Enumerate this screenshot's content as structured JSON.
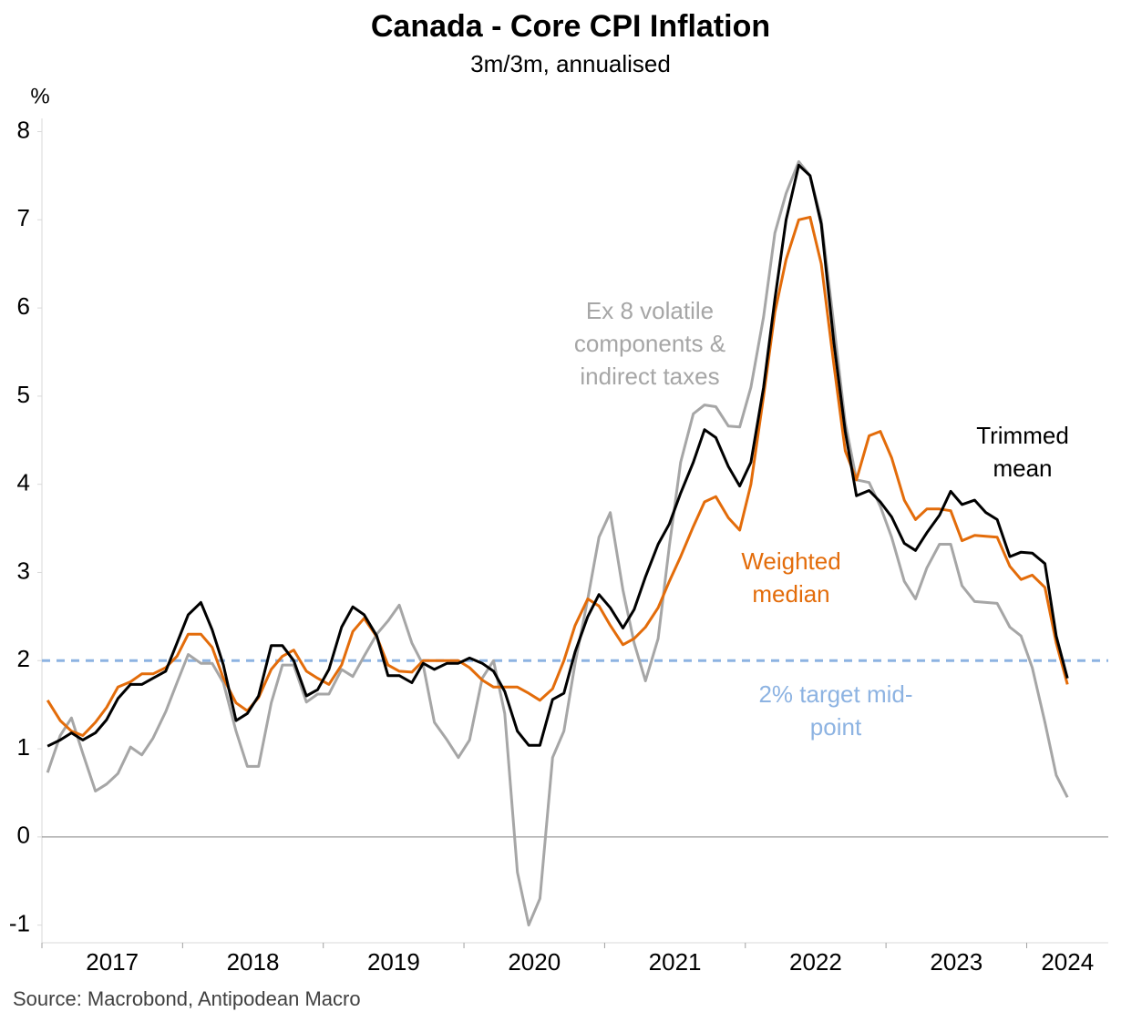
{
  "chart_data": {
    "type": "line",
    "title": "Canada - Core CPI Inflation",
    "subtitle": "3m/3m, annualised",
    "y_unit_label": "%",
    "source": "Source: Macrobond, Antipodean Macro",
    "xlim": [
      2017,
      2024.58
    ],
    "xticks": [
      2017,
      2018,
      2019,
      2020,
      2021,
      2022,
      2023,
      2024
    ],
    "ylim": [
      -1.2,
      8.15
    ],
    "yticks": [
      -1,
      0,
      1,
      2,
      3,
      4,
      5,
      6,
      7,
      8
    ],
    "x": [
      2017.04,
      2017.13,
      2017.21,
      2017.29,
      2017.38,
      2017.46,
      2017.54,
      2017.63,
      2017.71,
      2017.79,
      2017.88,
      2017.96,
      2018.04,
      2018.13,
      2018.21,
      2018.29,
      2018.38,
      2018.46,
      2018.54,
      2018.63,
      2018.71,
      2018.79,
      2018.88,
      2018.96,
      2019.04,
      2019.13,
      2019.21,
      2019.29,
      2019.38,
      2019.46,
      2019.54,
      2019.63,
      2019.71,
      2019.79,
      2019.88,
      2019.96,
      2020.04,
      2020.13,
      2020.21,
      2020.29,
      2020.38,
      2020.46,
      2020.54,
      2020.63,
      2020.71,
      2020.79,
      2020.88,
      2020.96,
      2021.04,
      2021.13,
      2021.21,
      2021.29,
      2021.38,
      2021.46,
      2021.54,
      2021.63,
      2021.71,
      2021.79,
      2021.88,
      2021.96,
      2022.04,
      2022.13,
      2022.21,
      2022.29,
      2022.38,
      2022.46,
      2022.54,
      2022.63,
      2022.71,
      2022.79,
      2022.88,
      2022.96,
      2023.04,
      2023.13,
      2023.21,
      2023.29,
      2023.38,
      2023.46,
      2023.54,
      2023.63,
      2023.71,
      2023.79,
      2023.88,
      2023.96,
      2024.04,
      2024.13,
      2024.21,
      2024.29
    ],
    "series": [
      {
        "name": "Ex 8 volatile components & indirect taxes",
        "color": "#a6a6a6",
        "values": [
          0.73,
          1.15,
          1.35,
          0.95,
          0.52,
          0.6,
          0.72,
          1.02,
          0.93,
          1.12,
          1.42,
          1.75,
          2.07,
          1.97,
          1.97,
          1.75,
          1.2,
          0.8,
          0.8,
          1.52,
          1.95,
          1.95,
          1.53,
          1.62,
          1.62,
          1.9,
          1.82,
          2.05,
          2.3,
          2.45,
          2.63,
          2.2,
          1.95,
          1.3,
          1.1,
          0.9,
          1.1,
          1.8,
          2.0,
          1.4,
          -0.4,
          -1.0,
          -0.7,
          0.9,
          1.2,
          1.97,
          2.7,
          3.4,
          3.68,
          2.8,
          2.2,
          1.77,
          2.25,
          3.3,
          4.25,
          4.8,
          4.9,
          4.88,
          4.66,
          4.65,
          5.1,
          5.9,
          6.85,
          7.3,
          7.66,
          7.5,
          7.0,
          5.8,
          4.7,
          4.05,
          4.02,
          3.75,
          3.4,
          2.9,
          2.7,
          3.05,
          3.32,
          3.32,
          2.85,
          2.67,
          2.66,
          2.65,
          2.38,
          2.28,
          1.92,
          1.3,
          0.7,
          0.45
        ]
      },
      {
        "name": "Weighted median",
        "color": "#e36c0a",
        "values": [
          1.55,
          1.32,
          1.2,
          1.15,
          1.3,
          1.47,
          1.7,
          1.76,
          1.85,
          1.85,
          1.92,
          2.05,
          2.3,
          2.3,
          2.15,
          1.8,
          1.52,
          1.43,
          1.58,
          1.9,
          2.05,
          2.12,
          1.88,
          1.8,
          1.73,
          1.95,
          2.33,
          2.48,
          2.27,
          1.95,
          1.88,
          1.87,
          2.0,
          2.0,
          2.0,
          2.0,
          1.92,
          1.78,
          1.7,
          1.7,
          1.7,
          1.63,
          1.55,
          1.68,
          2.0,
          2.4,
          2.7,
          2.62,
          2.4,
          2.18,
          2.25,
          2.38,
          2.6,
          2.9,
          3.18,
          3.52,
          3.8,
          3.86,
          3.62,
          3.48,
          4.0,
          5.0,
          5.95,
          6.55,
          7.0,
          7.03,
          6.5,
          5.35,
          4.38,
          4.05,
          4.55,
          4.6,
          4.3,
          3.82,
          3.6,
          3.72,
          3.72,
          3.7,
          3.36,
          3.42,
          3.41,
          3.4,
          3.07,
          2.92,
          2.97,
          2.83,
          2.2,
          1.73
        ]
      },
      {
        "name": "Trimmed mean",
        "color": "#000000",
        "values": [
          1.03,
          1.1,
          1.18,
          1.1,
          1.18,
          1.33,
          1.57,
          1.73,
          1.73,
          1.8,
          1.88,
          2.2,
          2.52,
          2.66,
          2.35,
          1.95,
          1.32,
          1.4,
          1.6,
          2.17,
          2.17,
          2.0,
          1.6,
          1.67,
          1.9,
          2.38,
          2.61,
          2.52,
          2.28,
          1.83,
          1.83,
          1.75,
          1.97,
          1.9,
          1.97,
          1.97,
          2.03,
          1.97,
          1.88,
          1.65,
          1.2,
          1.04,
          1.04,
          1.56,
          1.63,
          2.1,
          2.5,
          2.75,
          2.6,
          2.37,
          2.58,
          2.95,
          3.32,
          3.55,
          3.9,
          4.25,
          4.62,
          4.53,
          4.2,
          3.98,
          4.25,
          5.1,
          6.1,
          7.0,
          7.62,
          7.5,
          6.95,
          5.6,
          4.6,
          3.87,
          3.93,
          3.8,
          3.63,
          3.33,
          3.25,
          3.45,
          3.65,
          3.92,
          3.77,
          3.82,
          3.68,
          3.6,
          3.18,
          3.23,
          3.22,
          3.1,
          2.28,
          1.8
        ]
      }
    ],
    "target_line": {
      "value": 2,
      "label": "2% target mid-point",
      "color": "#8db3e2"
    }
  }
}
